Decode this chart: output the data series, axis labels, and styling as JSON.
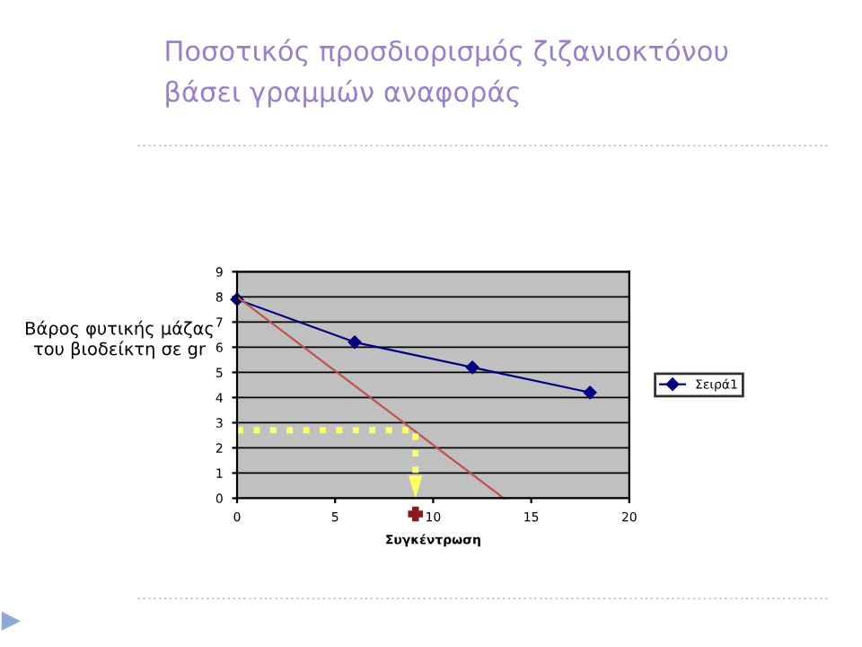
{
  "chart_data": {
    "type": "line",
    "title": "Ποσοτικός προσδιορισμός ζιζανιοκτόνου\nβάσει γραμμών αναφοράς",
    "xlabel": "Συγκέντρωση",
    "ylabel": "Βάρος φυτικής μάζας\nτου βιοδείκτη σε gr",
    "series": [
      {
        "name": "Σειρά1",
        "color": "#000080",
        "x": [
          0,
          6,
          12,
          18
        ],
        "values": [
          7.9,
          6.2,
          5.2,
          4.2
        ],
        "marker": "diamond"
      },
      {
        "type": "line",
        "color": "#c0504d",
        "x": [
          0,
          13.6
        ],
        "values": [
          8,
          0
        ],
        "marker": "none"
      },
      {
        "type": "line",
        "color": "#ffff66",
        "x": [
          0,
          9.1,
          9.1
        ],
        "values": [
          2.7,
          2.7,
          0
        ],
        "marker": "none",
        "line_style": "dotted"
      }
    ],
    "xlim": [
      0,
      20
    ],
    "xticks": [
      0,
      5,
      10,
      15,
      20
    ],
    "ylim": [
      0,
      9
    ],
    "yticks": [
      0,
      1,
      2,
      3,
      4,
      5,
      6,
      7,
      8,
      9
    ],
    "grid": "y",
    "legend": "right"
  }
}
